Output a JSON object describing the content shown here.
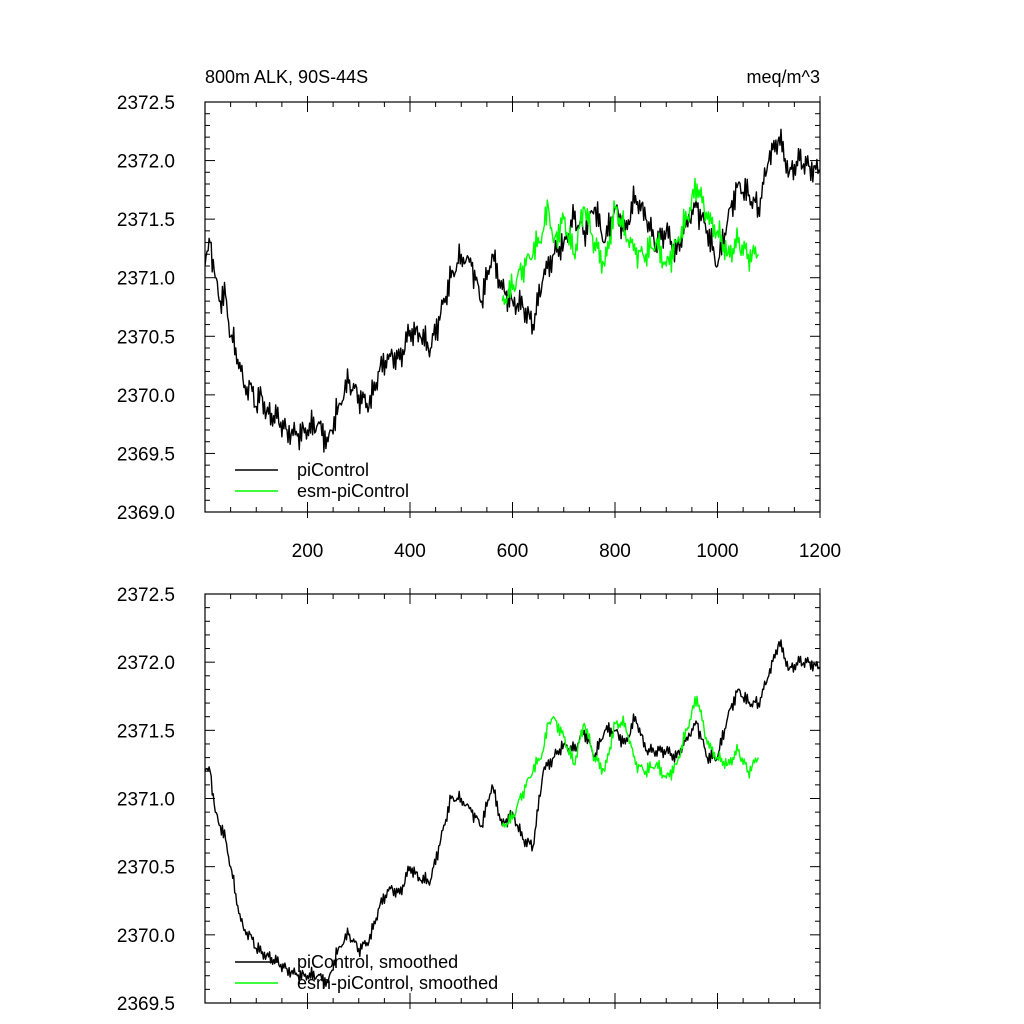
{
  "chart_data": [
    {
      "type": "line",
      "title_left": "800m ALK, 90S-44S",
      "title_right": "meq/m^3",
      "xlabel": "",
      "ylabel": "",
      "xlim": [
        0,
        1200
      ],
      "ylim": [
        2369.0,
        2372.5
      ],
      "xticks": [
        200,
        400,
        600,
        800,
        1000,
        1200
      ],
      "xtick_labels": [
        "200",
        "400",
        "600",
        "800",
        "1000",
        "1200"
      ],
      "yticks": [
        2369.0,
        2369.5,
        2370.0,
        2370.5,
        2371.0,
        2371.5,
        2372.0,
        2372.5
      ],
      "ytick_labels": [
        "2369.0",
        "2369.5",
        "2370.0",
        "2370.5",
        "2371.0",
        "2371.5",
        "2372.0",
        "2372.5"
      ],
      "legend_position": "bottom-left",
      "series": [
        {
          "name": "piControl",
          "color": "#000000",
          "x": [
            0,
            10,
            20,
            30,
            40,
            50,
            60,
            70,
            80,
            90,
            100,
            110,
            120,
            140,
            160,
            180,
            200,
            220,
            240,
            260,
            280,
            300,
            320,
            340,
            360,
            380,
            400,
            420,
            440,
            460,
            480,
            500,
            520,
            540,
            560,
            580,
            600,
            620,
            640,
            660,
            680,
            700,
            720,
            740,
            760,
            780,
            800,
            820,
            840,
            860,
            880,
            900,
            920,
            940,
            960,
            980,
            1000,
            1020,
            1040,
            1060,
            1080,
            1100,
            1120,
            1140,
            1160,
            1180,
            1200
          ],
          "y": [
            2371.1,
            2371.3,
            2371.0,
            2370.8,
            2370.85,
            2370.5,
            2370.4,
            2370.2,
            2370.0,
            2370.1,
            2369.9,
            2370.0,
            2369.85,
            2369.8,
            2369.7,
            2369.65,
            2369.7,
            2369.75,
            2369.6,
            2369.9,
            2370.1,
            2370.0,
            2369.9,
            2370.2,
            2370.35,
            2370.3,
            2370.55,
            2370.5,
            2370.4,
            2370.7,
            2371.0,
            2371.2,
            2371.1,
            2370.8,
            2371.2,
            2370.9,
            2370.8,
            2370.75,
            2370.6,
            2371.0,
            2371.2,
            2371.3,
            2371.5,
            2371.4,
            2371.6,
            2371.3,
            2371.6,
            2371.4,
            2371.7,
            2371.5,
            2371.3,
            2371.4,
            2371.2,
            2371.5,
            2371.6,
            2371.4,
            2371.1,
            2371.5,
            2371.8,
            2371.7,
            2371.6,
            2372.0,
            2372.2,
            2371.9,
            2372.0,
            2371.95,
            2371.9
          ]
        },
        {
          "name": "esm-piControl",
          "color": "#00ff00",
          "x": [
            580,
            600,
            620,
            640,
            660,
            670,
            680,
            700,
            720,
            740,
            760,
            780,
            800,
            820,
            840,
            860,
            880,
            900,
            920,
            940,
            960,
            980,
            1000,
            1020,
            1040,
            1060,
            1080
          ],
          "y": [
            2370.8,
            2370.9,
            2371.1,
            2371.2,
            2371.4,
            2371.6,
            2371.3,
            2371.5,
            2371.2,
            2371.6,
            2371.3,
            2371.1,
            2371.6,
            2371.4,
            2371.2,
            2371.2,
            2371.3,
            2371.1,
            2371.3,
            2371.5,
            2371.8,
            2371.5,
            2371.4,
            2371.2,
            2371.3,
            2371.2,
            2371.2
          ]
        }
      ]
    },
    {
      "type": "line",
      "xlabel": "",
      "ylabel": "",
      "xlim": [
        0,
        1200
      ],
      "ylim": [
        2369.5,
        2372.5
      ],
      "xticks": [
        200,
        400,
        600,
        800,
        1000,
        1200
      ],
      "yticks": [
        2369.5,
        2370.0,
        2370.5,
        2371.0,
        2371.5,
        2372.0,
        2372.5
      ],
      "ytick_labels": [
        "2369.5",
        "2370.0",
        "2370.5",
        "2371.0",
        "2371.5",
        "2372.0",
        "2372.5"
      ],
      "legend_position": "bottom-left",
      "series": [
        {
          "name": "piControl, smoothed",
          "color": "#000000",
          "x": [
            0,
            10,
            20,
            30,
            40,
            50,
            60,
            70,
            80,
            90,
            100,
            120,
            140,
            160,
            180,
            200,
            220,
            240,
            260,
            280,
            300,
            320,
            340,
            360,
            380,
            400,
            420,
            440,
            460,
            480,
            500,
            520,
            540,
            560,
            580,
            600,
            620,
            640,
            660,
            680,
            700,
            720,
            740,
            760,
            780,
            800,
            820,
            840,
            860,
            880,
            900,
            920,
            940,
            960,
            980,
            1000,
            1020,
            1040,
            1060,
            1080,
            1100,
            1120,
            1140,
            1160,
            1180,
            1200
          ],
          "y": [
            2371.2,
            2371.2,
            2370.9,
            2370.8,
            2370.7,
            2370.5,
            2370.3,
            2370.1,
            2370.0,
            2370.0,
            2369.9,
            2369.85,
            2369.8,
            2369.75,
            2369.7,
            2369.7,
            2369.7,
            2369.65,
            2369.9,
            2370.0,
            2369.9,
            2369.95,
            2370.2,
            2370.35,
            2370.3,
            2370.5,
            2370.4,
            2370.4,
            2370.7,
            2371.0,
            2371.0,
            2370.9,
            2370.8,
            2371.1,
            2370.8,
            2370.9,
            2370.7,
            2370.65,
            2371.2,
            2371.3,
            2371.4,
            2371.35,
            2371.5,
            2371.3,
            2371.5,
            2371.5,
            2371.4,
            2371.6,
            2371.35,
            2371.35,
            2371.35,
            2371.3,
            2371.45,
            2371.55,
            2371.3,
            2371.3,
            2371.6,
            2371.8,
            2371.7,
            2371.7,
            2371.9,
            2372.15,
            2371.95,
            2372.0,
            2372.0,
            2371.95
          ]
        },
        {
          "name": "esm-piControl, smoothed",
          "color": "#00ff00",
          "x": [
            580,
            600,
            620,
            640,
            660,
            670,
            680,
            700,
            720,
            740,
            760,
            780,
            800,
            820,
            840,
            860,
            880,
            900,
            920,
            940,
            960,
            980,
            1000,
            1020,
            1040,
            1060,
            1080
          ],
          "y": [
            2370.8,
            2370.85,
            2371.05,
            2371.2,
            2371.35,
            2371.55,
            2371.6,
            2371.45,
            2371.25,
            2371.55,
            2371.3,
            2371.2,
            2371.55,
            2371.55,
            2371.25,
            2371.2,
            2371.25,
            2371.15,
            2371.25,
            2371.5,
            2371.75,
            2371.4,
            2371.3,
            2371.25,
            2371.35,
            2371.2,
            2371.3
          ]
        }
      ]
    }
  ]
}
